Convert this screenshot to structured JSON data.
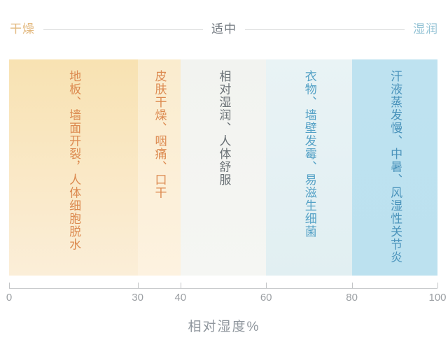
{
  "header": {
    "zones": [
      {
        "label": "干燥",
        "color": "#e3ba81"
      },
      {
        "label": "适中",
        "color": "#6e757c"
      },
      {
        "label": "湿润",
        "color": "#94c3d5"
      }
    ]
  },
  "chart_data": {
    "type": "heatmap",
    "title": "",
    "xlabel": "相对湿度%",
    "x_range": [
      0,
      100
    ],
    "x_ticks": [
      "0",
      "30",
      "40",
      "60",
      "80",
      "100"
    ],
    "x_tick_positions": [
      0,
      30,
      40,
      60,
      80,
      100
    ],
    "zone_annotations": [
      {
        "label": "干燥",
        "position": "left"
      },
      {
        "label": "适中",
        "position": "center"
      },
      {
        "label": "湿润",
        "position": "right"
      }
    ],
    "bands": [
      {
        "range": [
          0,
          30
        ],
        "label": "地板、墙面开裂，人体细胞脱水",
        "bg_top": "#f8e2b2",
        "bg_bottom": "#fbeed8",
        "text_color": "#dc8a50"
      },
      {
        "range": [
          30,
          40
        ],
        "label": "皮肤干燥、咽痛、口干",
        "bg_top": "#faecce",
        "bg_bottom": "#fdf2e0",
        "text_color": "#dc8a50"
      },
      {
        "range": [
          40,
          60
        ],
        "label": "相对湿润、人体舒服",
        "bg_top": "#f2f3f0",
        "bg_bottom": "#f5f6f3",
        "text_color": "#697075"
      },
      {
        "range": [
          60,
          80
        ],
        "label": "衣物、墙壁发霉、易滋生细菌",
        "bg_top": "#e9f3f5",
        "bg_bottom": "#e1eff2",
        "text_color": "#54a1c6"
      },
      {
        "range": [
          80,
          100
        ],
        "label": "汗液蒸发慢、中暑、风湿性关节炎",
        "bg_top": "#bee2f0",
        "bg_bottom": "#bce1ef",
        "text_color": "#4a93bb"
      }
    ]
  }
}
